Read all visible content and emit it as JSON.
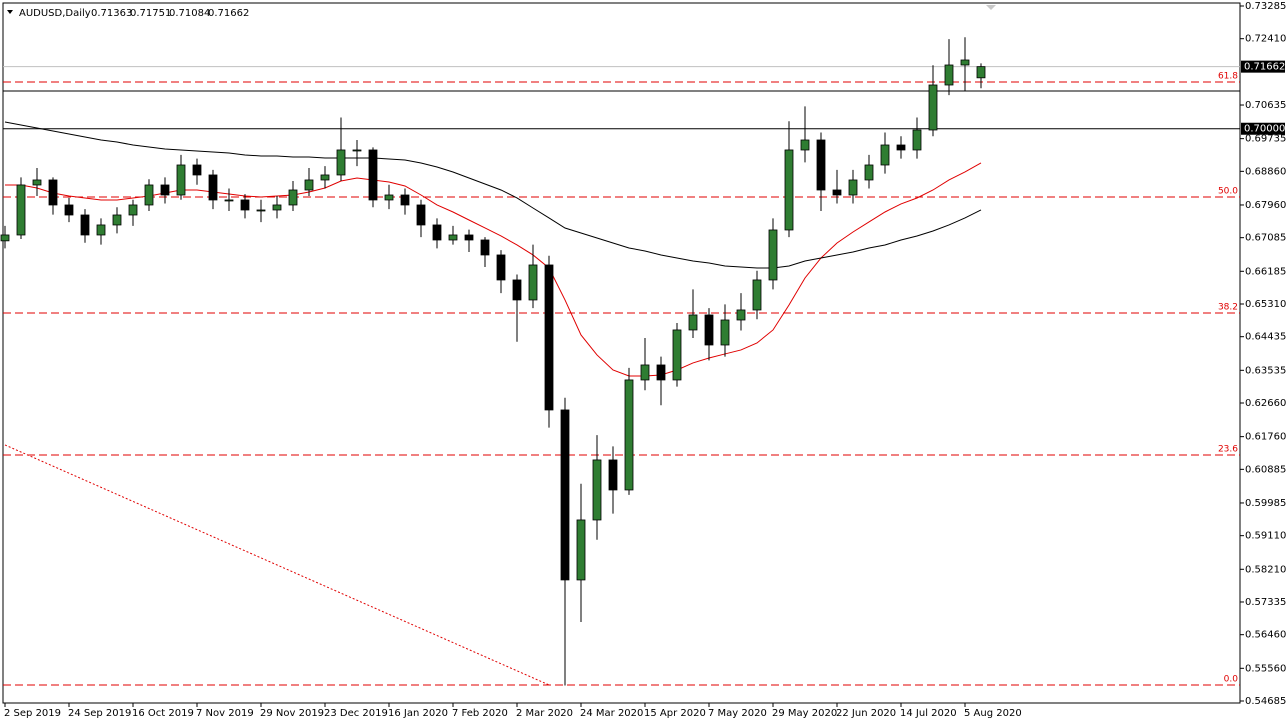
{
  "chart_data": {
    "type": "candlestick",
    "symbol": "AUDUSD,Daily",
    "categories": [
      "2 Sep 2019",
      null,
      null,
      null,
      "24 Sep 2019",
      null,
      null,
      null,
      "16 Oct 2019",
      null,
      null,
      null,
      "7 Nov 2019",
      null,
      null,
      null,
      "29 Nov 2019",
      null,
      null,
      null,
      "23 Dec 2019",
      null,
      null,
      null,
      "16 Jan 2020",
      null,
      null,
      null,
      "7 Feb 2020",
      null,
      null,
      null,
      "2 Mar 2020",
      null,
      null,
      null,
      "24 Mar 2020",
      null,
      null,
      null,
      "15 Apr 2020",
      null,
      null,
      null,
      "7 May 2020",
      null,
      null,
      null,
      "29 May 2020",
      null,
      null,
      null,
      "22 Jun 2020",
      null,
      null,
      null,
      "14 Jul 2020",
      null,
      null,
      null,
      "5 Aug 2020",
      null
    ],
    "candles": {
      "open": [
        0.67,
        0.67157,
        0.68495,
        0.68629,
        0.6796,
        0.67692,
        0.67157,
        0.67425,
        0.67692,
        0.6796,
        0.68495,
        0.68227,
        0.6903,
        0.68763,
        0.68094,
        0.68094,
        0.67826,
        0.67826,
        0.6796,
        0.68361,
        0.68629,
        0.68763,
        0.69432,
        0.69432,
        0.68094,
        0.68227,
        0.6796,
        0.67425,
        0.67023,
        0.67157,
        0.67023,
        0.66622,
        0.65953,
        0.65418,
        0.66354,
        0.62474,
        0.57925,
        0.5953,
        0.61136,
        0.60333,
        0.63277,
        0.63678,
        0.63277,
        0.64615,
        0.65016,
        0.64213,
        0.64882,
        0.6515,
        0.65953,
        0.67291,
        0.69432,
        0.69699,
        0.68361,
        0.68227,
        0.68629,
        0.6903,
        0.69565,
        0.69432,
        0.69967,
        0.71171,
        0.71706,
        0.71363
      ],
      "high": [
        0.674,
        0.687,
        0.6895,
        0.687,
        0.6815,
        0.6785,
        0.676,
        0.679,
        0.681,
        0.6865,
        0.687,
        0.693,
        0.692,
        0.689,
        0.684,
        0.6825,
        0.681,
        0.682,
        0.686,
        0.6895,
        0.69,
        0.703,
        0.697,
        0.695,
        0.685,
        0.684,
        0.681,
        0.676,
        0.674,
        0.673,
        0.671,
        0.6675,
        0.661,
        0.669,
        0.666,
        0.628,
        0.605,
        0.618,
        0.615,
        0.636,
        0.644,
        0.639,
        0.648,
        0.657,
        0.652,
        0.653,
        0.656,
        0.662,
        0.676,
        0.702,
        0.706,
        0.699,
        0.689,
        0.689,
        0.693,
        0.699,
        0.698,
        0.703,
        0.717,
        0.724,
        0.7245,
        0.71751
      ],
      "low": [
        0.668,
        0.6705,
        0.682,
        0.677,
        0.675,
        0.6695,
        0.669,
        0.672,
        0.674,
        0.678,
        0.68,
        0.681,
        0.685,
        0.6785,
        0.678,
        0.676,
        0.675,
        0.676,
        0.678,
        0.682,
        0.684,
        0.686,
        0.69,
        0.679,
        0.6785,
        0.677,
        0.671,
        0.668,
        0.669,
        0.667,
        0.663,
        0.656,
        0.643,
        0.652,
        0.62,
        0.551,
        0.568,
        0.59,
        0.597,
        0.602,
        0.63,
        0.626,
        0.631,
        0.644,
        0.638,
        0.639,
        0.646,
        0.649,
        0.657,
        0.671,
        0.691,
        0.678,
        0.68,
        0.68,
        0.684,
        0.688,
        0.692,
        0.692,
        0.698,
        0.709,
        0.71,
        0.71084
      ],
      "close": [
        0.67157,
        0.68495,
        0.68629,
        0.6796,
        0.67692,
        0.67157,
        0.67425,
        0.67692,
        0.6796,
        0.68495,
        0.68227,
        0.6903,
        0.68763,
        0.68094,
        0.68094,
        0.67826,
        0.67826,
        0.6796,
        0.68361,
        0.68629,
        0.68763,
        0.69432,
        0.69432,
        0.68094,
        0.68227,
        0.6796,
        0.67425,
        0.67023,
        0.67157,
        0.67023,
        0.66622,
        0.65953,
        0.65418,
        0.66354,
        0.62474,
        0.57925,
        0.5953,
        0.61136,
        0.60333,
        0.63277,
        0.63678,
        0.63277,
        0.64615,
        0.65016,
        0.64213,
        0.64882,
        0.6515,
        0.65953,
        0.67291,
        0.69432,
        0.69699,
        0.68361,
        0.68227,
        0.68629,
        0.6903,
        0.69565,
        0.69432,
        0.69967,
        0.71171,
        0.71706,
        0.7184,
        0.71662
      ],
      "bull_color": "#2f7d32",
      "bear_color": "#000000"
    },
    "series": [
      {
        "color": "#e00000",
        "values": [
          0.68495,
          0.68495,
          0.68415,
          0.68281,
          0.68201,
          0.68147,
          0.68094,
          0.68094,
          0.68147,
          0.68201,
          0.68281,
          0.68361,
          0.68361,
          0.68308,
          0.68254,
          0.68201,
          0.68174,
          0.68201,
          0.68227,
          0.68308,
          0.68415,
          0.68602,
          0.68682,
          0.68629,
          0.68575,
          0.68468,
          0.68227,
          0.6796,
          0.67772,
          0.67558,
          0.67344,
          0.6713,
          0.66889,
          0.66622,
          0.66274,
          0.65418,
          0.64481,
          0.63946,
          0.63544,
          0.63384,
          0.63384,
          0.63411,
          0.63544,
          0.63732,
          0.63865,
          0.63973,
          0.6408,
          0.64267,
          0.64615,
          0.65284,
          0.66006,
          0.66541,
          0.66943,
          0.67237,
          0.67505,
          0.67772,
          0.67987,
          0.68147,
          0.68361,
          0.68629,
          0.68843,
          0.69084
        ]
      },
      {
        "color": "#000000",
        "values": [
          0.70181,
          0.70101,
          0.7002,
          0.6994,
          0.6986,
          0.69779,
          0.69699,
          0.69646,
          0.69565,
          0.69512,
          0.69458,
          0.69432,
          0.69405,
          0.69378,
          0.69351,
          0.69298,
          0.69271,
          0.69271,
          0.69244,
          0.69244,
          0.69217,
          0.69217,
          0.69217,
          0.69217,
          0.69191,
          0.69164,
          0.69084,
          0.68977,
          0.68843,
          0.68682,
          0.68522,
          0.68361,
          0.68147,
          0.67879,
          0.67612,
          0.67344,
          0.6721,
          0.67077,
          0.66943,
          0.66809,
          0.66729,
          0.66622,
          0.66541,
          0.66461,
          0.66408,
          0.66327,
          0.66301,
          0.66274,
          0.66274,
          0.66327,
          0.66461,
          0.66541,
          0.66622,
          0.66702,
          0.66809,
          0.66889,
          0.67023,
          0.6713,
          0.67264,
          0.67425,
          0.67612,
          0.67826
        ]
      }
    ],
    "fib_levels": [
      {
        "label": "61.8",
        "value": 0.71251
      },
      {
        "label": "50.0",
        "value": 0.68173
      },
      {
        "label": "38.2",
        "value": 0.65069
      },
      {
        "label": "23.6",
        "value": 0.61269
      },
      {
        "label": "0.0",
        "value": 0.55113
      }
    ],
    "fib_color": "#e00000",
    "hlines": [
      {
        "value": 0.7,
        "label": "0.70000"
      },
      {
        "value": 0.7101
      }
    ],
    "bid": 0.71662,
    "trendline": {
      "x": [
        0,
        34
      ],
      "y": [
        0.61537,
        0.55115
      ],
      "color": "#e00000"
    },
    "ylim": [
      0.54685,
      0.73285
    ],
    "yticks": [
      {
        "value": 0.73285,
        "label": "0.73285"
      },
      {
        "value": 0.7241,
        "label": "0.72410"
      },
      {
        "value": 0.70635,
        "label": "0.70635"
      },
      {
        "value": 0.69735,
        "label": "0.69735"
      },
      {
        "value": 0.6886,
        "label": "0.68860"
      },
      {
        "value": 0.6796,
        "label": "0.67960"
      },
      {
        "value": 0.67085,
        "label": "0.67085"
      },
      {
        "value": 0.66185,
        "label": "0.66185"
      },
      {
        "value": 0.6531,
        "label": "0.65310"
      },
      {
        "value": 0.64435,
        "label": "0.64435"
      },
      {
        "value": 0.63535,
        "label": "0.63535"
      },
      {
        "value": 0.6266,
        "label": "0.62660"
      },
      {
        "value": 0.6176,
        "label": "0.61760"
      },
      {
        "value": 0.60885,
        "label": "0.60885"
      },
      {
        "value": 0.59985,
        "label": "0.59985"
      },
      {
        "value": 0.5911,
        "label": "0.59110"
      },
      {
        "value": 0.5821,
        "label": "0.58210"
      },
      {
        "value": 0.57335,
        "label": "0.57335"
      },
      {
        "value": 0.5646,
        "label": "0.56460"
      },
      {
        "value": 0.5556,
        "label": "0.55560"
      },
      {
        "value": 0.54685,
        "label": "0.54685"
      }
    ]
  }
}
